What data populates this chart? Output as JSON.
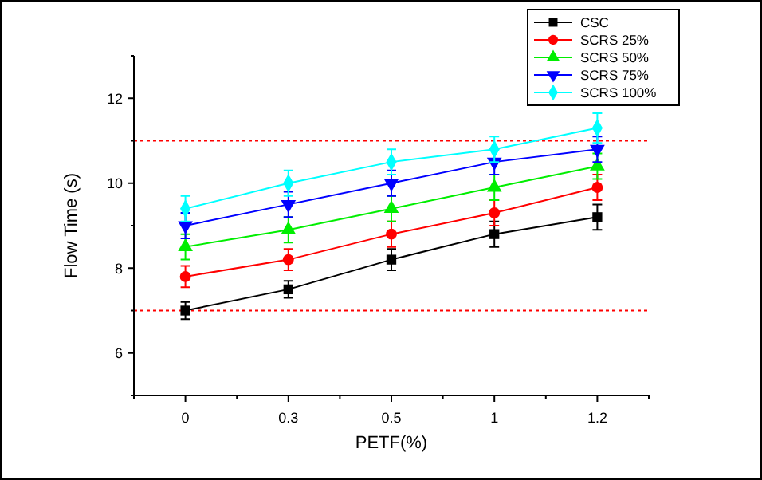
{
  "chart_data": {
    "type": "line",
    "xlabel": "PETF(%)",
    "ylabel": "Flow Time (s)",
    "categories": [
      "0",
      "0.3",
      "0.5",
      "1",
      "1.2"
    ],
    "ylim": [
      5,
      13
    ],
    "yticks": [
      {
        "value": 5,
        "label": null
      },
      6,
      {
        "value": 7,
        "label": null
      },
      8,
      {
        "value": 9,
        "label": null
      },
      10,
      {
        "value": 11,
        "label": null
      },
      12,
      {
        "value": 13,
        "label": null
      }
    ],
    "series": [
      {
        "name": "CSC",
        "color": "#000000",
        "marker": "square",
        "values": [
          7.0,
          7.5,
          8.2,
          8.8,
          9.2
        ],
        "errors": [
          0.2,
          0.2,
          0.25,
          0.3,
          0.3
        ]
      },
      {
        "name": "SCRS 25%",
        "color": "#ff0000",
        "marker": "circle",
        "values": [
          7.8,
          8.2,
          8.8,
          9.3,
          9.9
        ],
        "errors": [
          0.25,
          0.25,
          0.3,
          0.3,
          0.3
        ]
      },
      {
        "name": "SCRS 50%",
        "color": "#00ee00",
        "marker": "triangle",
        "values": [
          8.5,
          8.9,
          9.4,
          9.9,
          10.4
        ],
        "errors": [
          0.3,
          0.3,
          0.3,
          0.3,
          0.3
        ]
      },
      {
        "name": "SCRS 75%",
        "color": "#0000ff",
        "marker": "triangle-down",
        "values": [
          9.0,
          9.5,
          10.0,
          10.5,
          10.8
        ],
        "errors": [
          0.3,
          0.3,
          0.3,
          0.3,
          0.3
        ]
      },
      {
        "name": "SCRS 100%",
        "color": "#00ffff",
        "marker": "diamond",
        "values": [
          9.4,
          10.0,
          10.5,
          10.8,
          11.3
        ],
        "errors": [
          0.3,
          0.3,
          0.3,
          0.3,
          0.35
        ]
      }
    ],
    "ref_lines": [
      {
        "axis": "y",
        "value": 11,
        "color": "#ff0000",
        "line_style": "dotted"
      },
      {
        "axis": "y",
        "value": 7,
        "color": "#ff0000",
        "line_style": "dotted"
      }
    ],
    "legend": "top right",
    "grid": false
  }
}
